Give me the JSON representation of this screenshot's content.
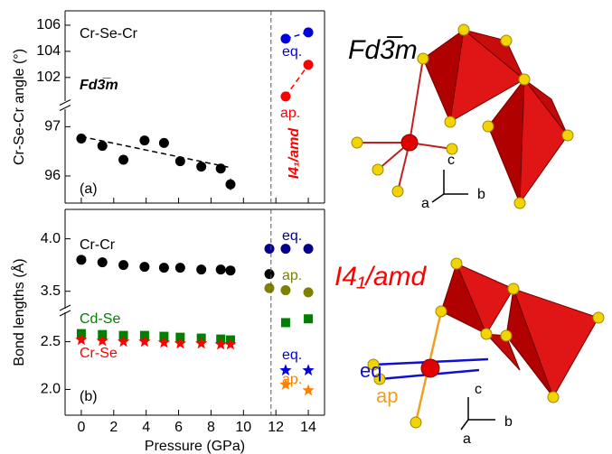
{
  "chart_data": [
    {
      "type": "scatter",
      "ylabel": "Cr-Se-Cr angle (°)",
      "annotations": [
        "Cr-Se-Cr",
        "Fd3̅m",
        "I4₁/amd"
      ],
      "ylim": [
        100.4,
        107.1
      ],
      "yticks": [
        102,
        104,
        106
      ],
      "series": [
        {
          "name": "eq.",
          "color": "#0000e0",
          "marker": "circle",
          "line": "dashed",
          "x": [
            12.6,
            14
          ],
          "values": [
            104.97,
            105.45
          ]
        },
        {
          "name": "ap.",
          "color": "#ff0000",
          "marker": "circle",
          "line": "dashed",
          "x": [
            12.6,
            14
          ],
          "values": [
            100.55,
            102.97
          ]
        }
      ]
    },
    {
      "type": "scatter",
      "annotations": [
        "(a)"
      ],
      "ylim": [
        95.45,
        97.3
      ],
      "yticks": [
        96,
        97
      ],
      "xlim": [
        -1,
        15
      ],
      "xticks": [
        0,
        2,
        4,
        6,
        8,
        10,
        12,
        14
      ],
      "vline": 11.7,
      "series": [
        {
          "color": "#000000",
          "marker": "circle",
          "x": [
            0,
            1.3,
            2.6,
            3.9,
            5.1,
            6.1,
            7.4,
            8.6,
            9.2
          ],
          "values": [
            96.76,
            96.61,
            96.33,
            96.72,
            96.67,
            96.3,
            96.19,
            96.15,
            95.83
          ],
          "errors": [
            null,
            null,
            null,
            null,
            null,
            null,
            null,
            null,
            0.12
          ]
        },
        {
          "color": "#000000",
          "marker": "none",
          "line": "dashed",
          "x": [
            0,
            9.2
          ],
          "values": [
            96.8,
            96.17
          ]
        }
      ]
    },
    {
      "type": "scatter",
      "ylabel": "Bond lengths (Å)",
      "ylim": [
        3.36,
        4.28
      ],
      "yticks": [
        3.5,
        {
          "value": 4,
          "label": "4.0"
        }
      ],
      "series": [
        {
          "name": "Cr-Cr",
          "color": "#000000",
          "marker": "circle",
          "x": [
            0,
            1.3,
            2.6,
            3.9,
            5.1,
            6.1,
            7.4,
            8.6,
            9.2,
            11.6
          ],
          "values": [
            3.8,
            3.776,
            3.75,
            3.733,
            3.724,
            3.724,
            3.707,
            3.707,
            3.698,
            3.664
          ]
        },
        {
          "name": "eq.",
          "color": "#00008b",
          "marker": "circle",
          "x": [
            11.6,
            12.6,
            14
          ],
          "values": [
            3.905,
            3.905,
            3.905
          ]
        },
        {
          "name": "ap.",
          "color": "#808000",
          "marker": "circle",
          "x": [
            11.6,
            12.6,
            14
          ],
          "values": [
            3.53,
            3.51,
            3.49
          ]
        }
      ]
    },
    {
      "type": "scatter",
      "annotations": [
        "(b)"
      ],
      "xlabel": "Pressure (GPa)",
      "ylim": [
        1.73,
        2.78
      ],
      "yticks": [
        {
          "value": 2,
          "label": "2.0"
        },
        2.5
      ],
      "xlim": [
        -1,
        15
      ],
      "xticks": [
        0,
        2,
        4,
        6,
        8,
        10,
        12,
        14
      ],
      "vline": 11.7,
      "series": [
        {
          "name": "Cd-Se",
          "color": "#008000",
          "marker": "square",
          "x": [
            0,
            1.3,
            2.6,
            3.9,
            5.1,
            6.1,
            7.4,
            8.6,
            9.2,
            12.6,
            14
          ],
          "values": [
            2.585,
            2.575,
            2.566,
            2.566,
            2.557,
            2.547,
            2.538,
            2.528,
            2.519,
            2.7,
            2.74
          ]
        },
        {
          "name": "Cr-Se",
          "color": "#ff0000",
          "marker": "star",
          "x": [
            0,
            1.3,
            2.6,
            3.9,
            5.1,
            6.1,
            7.4,
            8.6,
            9.2
          ],
          "values": [
            2.519,
            2.509,
            2.5,
            2.5,
            2.491,
            2.481,
            2.481,
            2.472,
            2.472
          ]
        },
        {
          "name": "eq.",
          "color": "#0000e0",
          "marker": "star",
          "x": [
            12.6,
            14
          ],
          "values": [
            2.2,
            2.2
          ]
        },
        {
          "name": "ap.",
          "color": "#ff8000",
          "marker": "star",
          "x": [
            12.6,
            14
          ],
          "values": [
            2.05,
            1.99
          ]
        }
      ]
    }
  ],
  "structures": {
    "top": {
      "label": "Fd3̅m",
      "axes": [
        "c",
        "a",
        "b"
      ]
    },
    "bottom": {
      "label": "I4₁/amd",
      "axes": [
        "c",
        "b",
        "a"
      ],
      "bonds": [
        "eq",
        "ap"
      ]
    }
  }
}
